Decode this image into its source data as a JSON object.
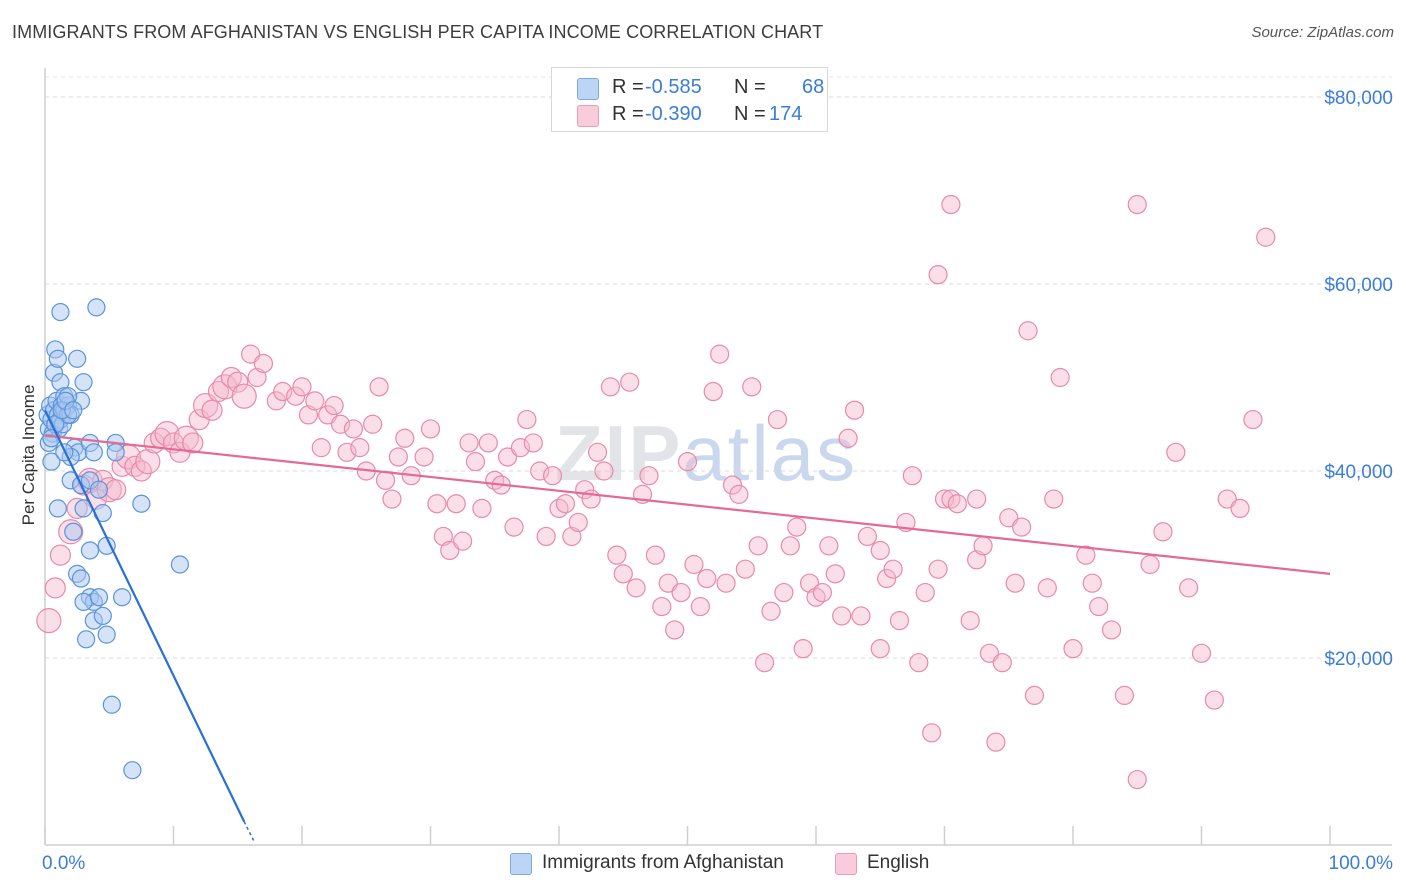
{
  "title": "IMMIGRANTS FROM AFGHANISTAN VS ENGLISH PER CAPITA INCOME CORRELATION CHART",
  "source": "Source: ZipAtlas.com",
  "watermark": {
    "zip": "ZIP",
    "atlas": "atlas"
  },
  "legend": {
    "rows": [
      {
        "r_label": "R =",
        "r_value": "-0.585",
        "n_label": "N =",
        "n_value": "68",
        "color": "#a9c8f0"
      },
      {
        "r_label": "R =",
        "r_value": "-0.390",
        "n_label": "N =",
        "n_value": "174",
        "color": "#f4b8cc"
      }
    ]
  },
  "bottom_legend": {
    "afghanistan": "Immigrants from Afghanistan",
    "english": "English"
  },
  "colors": {
    "blue_fill": "#a9c8f0",
    "blue_stroke": "#5b93dc",
    "blue_line": "#2a6fd4",
    "pink_fill": "#f4b8cc",
    "pink_stroke": "#e88aa8",
    "pink_line": "#e36a93",
    "tick": "#3b7dd8",
    "grid": "#d9d9d9"
  },
  "chart_data": {
    "type": "scatter",
    "title": "IMMIGRANTS FROM AFGHANISTAN VS ENGLISH PER CAPITA INCOME CORRELATION CHART",
    "xlabel": "",
    "ylabel": "Per Capita Income",
    "xlim": [
      0,
      100
    ],
    "ylim": [
      0,
      80000
    ],
    "x_tick_labels": [
      "0.0%",
      "100.0%"
    ],
    "y_tick_labels": [
      {
        "value": 20000,
        "label": "$20,000"
      },
      {
        "value": 40000,
        "label": "$40,000"
      },
      {
        "value": 60000,
        "label": "$60,000"
      },
      {
        "value": 80000,
        "label": "$80,000"
      }
    ],
    "series": [
      {
        "name": "Immigrants from Afghanistan",
        "r": -0.585,
        "n": 68,
        "trend": {
          "x0": 0,
          "y0": 46500,
          "x1": 15.5,
          "y1": 2500,
          "dash_to_x": 16.3,
          "dash_to_y": 300
        },
        "points": [
          [
            0.2,
            46000
          ],
          [
            0.3,
            44500
          ],
          [
            0.4,
            47000
          ],
          [
            0.5,
            45500
          ],
          [
            0.6,
            44000
          ],
          [
            0.7,
            46500
          ],
          [
            0.8,
            45000
          ],
          [
            0.9,
            47500
          ],
          [
            1.0,
            46000
          ],
          [
            1.1,
            44500
          ],
          [
            1.2,
            45500
          ],
          [
            1.3,
            47000
          ],
          [
            1.4,
            45000
          ],
          [
            1.5,
            46500
          ],
          [
            0.3,
            43000
          ],
          [
            0.5,
            41000
          ],
          [
            0.7,
            50500
          ],
          [
            0.8,
            53000
          ],
          [
            1.0,
            52000
          ],
          [
            1.2,
            49500
          ],
          [
            1.5,
            48000
          ],
          [
            1.8,
            47000
          ],
          [
            2.0,
            46000
          ],
          [
            2.3,
            42500
          ],
          [
            2.6,
            42000
          ],
          [
            2.0,
            41500
          ],
          [
            2.8,
            47500
          ],
          [
            1.2,
            57000
          ],
          [
            4.0,
            57500
          ],
          [
            2.5,
            52000
          ],
          [
            3.0,
            49500
          ],
          [
            1.8,
            48000
          ],
          [
            1.5,
            42000
          ],
          [
            2.0,
            39000
          ],
          [
            2.8,
            38500
          ],
          [
            3.5,
            39000
          ],
          [
            4.2,
            38000
          ],
          [
            3.0,
            36000
          ],
          [
            1.0,
            36000
          ],
          [
            4.5,
            35500
          ],
          [
            2.2,
            33500
          ],
          [
            3.5,
            31500
          ],
          [
            4.8,
            32000
          ],
          [
            2.5,
            29000
          ],
          [
            2.8,
            28500
          ],
          [
            3.5,
            26500
          ],
          [
            3.8,
            26000
          ],
          [
            3.0,
            26000
          ],
          [
            4.2,
            26500
          ],
          [
            3.8,
            24000
          ],
          [
            4.5,
            24500
          ],
          [
            3.2,
            22000
          ],
          [
            4.8,
            22500
          ],
          [
            6.0,
            26500
          ],
          [
            5.2,
            15000
          ],
          [
            7.5,
            36500
          ],
          [
            10.5,
            30000
          ],
          [
            6.8,
            8000
          ],
          [
            1.8,
            46000
          ],
          [
            3.5,
            43000
          ],
          [
            5.5,
            43000
          ],
          [
            5.5,
            42000
          ],
          [
            0.8,
            45000
          ],
          [
            1.3,
            46500
          ],
          [
            1.6,
            47500
          ],
          [
            2.2,
            46500
          ],
          [
            0.5,
            43500
          ],
          [
            3.8,
            42000
          ]
        ]
      },
      {
        "name": "English",
        "r": -0.39,
        "n": 174,
        "trend": {
          "x0": 0,
          "y0": 43800,
          "x1": 100,
          "y1": 29000
        },
        "points": [
          [
            0.3,
            24000
          ],
          [
            0.8,
            27500
          ],
          [
            1.2,
            31000
          ],
          [
            2.0,
            33500
          ],
          [
            2.5,
            36000
          ],
          [
            3.0,
            38500
          ],
          [
            3.5,
            39000
          ],
          [
            4.0,
            37000
          ],
          [
            4.5,
            39000
          ],
          [
            5.0,
            38000
          ],
          [
            5.5,
            38000
          ],
          [
            6.0,
            40500
          ],
          [
            6.5,
            41500
          ],
          [
            7.0,
            40500
          ],
          [
            7.5,
            40000
          ],
          [
            8.0,
            41000
          ],
          [
            8.5,
            43000
          ],
          [
            9.0,
            43500
          ],
          [
            9.5,
            44000
          ],
          [
            10.0,
            43000
          ],
          [
            10.5,
            42000
          ],
          [
            11.0,
            43500
          ],
          [
            11.5,
            43000
          ],
          [
            12.0,
            45500
          ],
          [
            12.5,
            47000
          ],
          [
            13.0,
            46500
          ],
          [
            13.5,
            48500
          ],
          [
            14.0,
            49000
          ],
          [
            14.5,
            50000
          ],
          [
            15.0,
            49500
          ],
          [
            15.5,
            48000
          ],
          [
            16.5,
            50000
          ],
          [
            16.0,
            52500
          ],
          [
            17.0,
            51500
          ],
          [
            18.0,
            47500
          ],
          [
            18.5,
            48500
          ],
          [
            19.5,
            48000
          ],
          [
            20.0,
            49000
          ],
          [
            20.5,
            46000
          ],
          [
            21.0,
            47500
          ],
          [
            21.5,
            42500
          ],
          [
            22.0,
            46000
          ],
          [
            22.5,
            47000
          ],
          [
            23.0,
            45000
          ],
          [
            23.5,
            42000
          ],
          [
            24.0,
            44500
          ],
          [
            24.5,
            42500
          ],
          [
            25.0,
            40000
          ],
          [
            25.5,
            45000
          ],
          [
            26.0,
            49000
          ],
          [
            26.5,
            39000
          ],
          [
            27.0,
            37000
          ],
          [
            27.5,
            41500
          ],
          [
            28.0,
            43500
          ],
          [
            28.5,
            39500
          ],
          [
            29.5,
            41500
          ],
          [
            30.0,
            44500
          ],
          [
            30.5,
            36500
          ],
          [
            31.0,
            33000
          ],
          [
            31.5,
            31500
          ],
          [
            32.0,
            36500
          ],
          [
            32.5,
            32500
          ],
          [
            33.0,
            43000
          ],
          [
            33.5,
            41000
          ],
          [
            34.0,
            36000
          ],
          [
            34.5,
            43000
          ],
          [
            35.0,
            39000
          ],
          [
            35.5,
            38500
          ],
          [
            36.0,
            41500
          ],
          [
            36.5,
            34000
          ],
          [
            37.0,
            42500
          ],
          [
            37.5,
            45500
          ],
          [
            38.0,
            43000
          ],
          [
            38.5,
            40000
          ],
          [
            39.0,
            33000
          ],
          [
            39.5,
            39500
          ],
          [
            40.0,
            36000
          ],
          [
            40.5,
            36500
          ],
          [
            41.0,
            33000
          ],
          [
            41.5,
            34500
          ],
          [
            42.0,
            38000
          ],
          [
            42.5,
            37000
          ],
          [
            43.0,
            42000
          ],
          [
            43.5,
            40000
          ],
          [
            44.0,
            49000
          ],
          [
            44.5,
            31000
          ],
          [
            45.0,
            29000
          ],
          [
            45.5,
            49500
          ],
          [
            46.0,
            27500
          ],
          [
            46.5,
            37500
          ],
          [
            47.0,
            39500
          ],
          [
            47.5,
            31000
          ],
          [
            48.0,
            25500
          ],
          [
            48.5,
            28000
          ],
          [
            49.0,
            23000
          ],
          [
            49.5,
            27000
          ],
          [
            50.0,
            41000
          ],
          [
            50.5,
            30000
          ],
          [
            51.0,
            25500
          ],
          [
            51.5,
            28500
          ],
          [
            52.0,
            48500
          ],
          [
            52.5,
            52500
          ],
          [
            53.0,
            28000
          ],
          [
            53.5,
            38500
          ],
          [
            54.0,
            37500
          ],
          [
            54.5,
            29500
          ],
          [
            55.0,
            49000
          ],
          [
            55.5,
            32000
          ],
          [
            56.0,
            19500
          ],
          [
            56.5,
            25000
          ],
          [
            57.0,
            45500
          ],
          [
            57.5,
            27000
          ],
          [
            58.0,
            32000
          ],
          [
            58.5,
            34000
          ],
          [
            59.0,
            21000
          ],
          [
            59.5,
            28000
          ],
          [
            60.0,
            26500
          ],
          [
            60.5,
            27000
          ],
          [
            61.0,
            32000
          ],
          [
            61.5,
            29000
          ],
          [
            62.0,
            24500
          ],
          [
            62.5,
            43500
          ],
          [
            63.0,
            46500
          ],
          [
            63.5,
            24500
          ],
          [
            64.0,
            33000
          ],
          [
            65.0,
            21000
          ],
          [
            65.5,
            28500
          ],
          [
            66.0,
            29500
          ],
          [
            66.5,
            24000
          ],
          [
            67.0,
            34500
          ],
          [
            68.0,
            19500
          ],
          [
            68.5,
            27000
          ],
          [
            69.0,
            12000
          ],
          [
            69.5,
            29500
          ],
          [
            70.0,
            37000
          ],
          [
            70.5,
            37000
          ],
          [
            71.0,
            36500
          ],
          [
            72.0,
            24000
          ],
          [
            72.5,
            30500
          ],
          [
            73.0,
            32000
          ],
          [
            73.5,
            20500
          ],
          [
            74.0,
            11000
          ],
          [
            74.5,
            19500
          ],
          [
            75.0,
            35000
          ],
          [
            75.5,
            28000
          ],
          [
            76.0,
            34000
          ],
          [
            76.5,
            55000
          ],
          [
            77.0,
            16000
          ],
          [
            78.0,
            27500
          ],
          [
            78.5,
            37000
          ],
          [
            79.0,
            50000
          ],
          [
            80.0,
            21000
          ],
          [
            81.0,
            31000
          ],
          [
            81.5,
            28000
          ],
          [
            82.0,
            25500
          ],
          [
            83.0,
            23000
          ],
          [
            84.0,
            16000
          ],
          [
            85.0,
            7000
          ],
          [
            86.0,
            30000
          ],
          [
            87.0,
            33500
          ],
          [
            88.0,
            42000
          ],
          [
            89.0,
            27500
          ],
          [
            90.0,
            20500
          ],
          [
            91.0,
            15500
          ],
          [
            92.0,
            37000
          ],
          [
            93.0,
            36000
          ],
          [
            94.0,
            45500
          ],
          [
            69.5,
            61000
          ],
          [
            85.0,
            68500
          ],
          [
            95.0,
            65000
          ],
          [
            70.5,
            68500
          ],
          [
            72.5,
            37000
          ],
          [
            67.5,
            39500
          ],
          [
            65.0,
            31500
          ]
        ]
      }
    ]
  }
}
